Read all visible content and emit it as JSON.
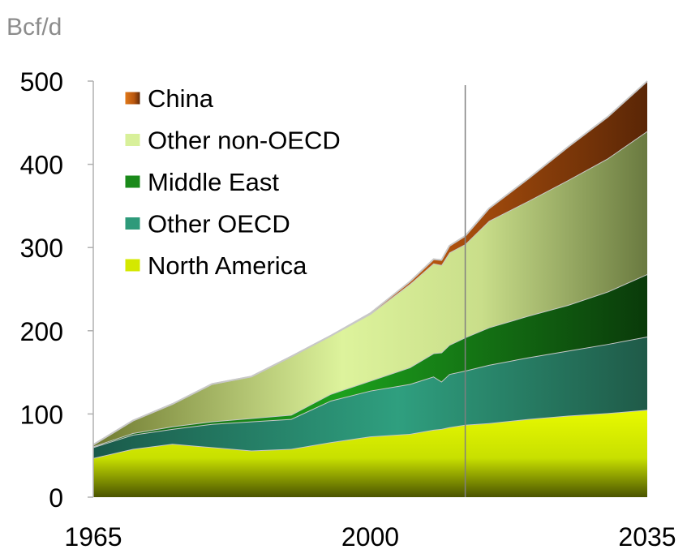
{
  "chart_data": {
    "type": "area",
    "stacked": true,
    "unit_label": "Bcf/d",
    "title": "",
    "xlabel": "",
    "ylabel": "Bcf/d",
    "xlim": [
      1965,
      2035
    ],
    "ylim": [
      0,
      500
    ],
    "x_ticks": [
      "1965",
      "2000",
      "2035"
    ],
    "y_ticks": [
      "0",
      "100",
      "200",
      "300",
      "400",
      "500"
    ],
    "grid": false,
    "legend_position": "top-left",
    "projection_start_year": 2012,
    "x": [
      1965,
      1970,
      1975,
      1980,
      1985,
      1990,
      1995,
      2000,
      2005,
      2008,
      2009,
      2010,
      2012,
      2015,
      2020,
      2025,
      2030,
      2035
    ],
    "series": [
      {
        "name": "North America",
        "color": "#d4e800",
        "values": [
          47,
          58,
          64,
          60,
          56,
          58,
          66,
          73,
          76,
          81,
          82,
          84,
          87,
          89,
          94,
          98,
          101,
          105
        ]
      },
      {
        "name": "Other OECD",
        "color": "#2e9a7a",
        "values": [
          13,
          17,
          18,
          28,
          35,
          36,
          50,
          55,
          60,
          64,
          57,
          64,
          65,
          70,
          74,
          78,
          83,
          88
        ]
      },
      {
        "name": "Middle East",
        "color": "#1a8a1a",
        "values": [
          1,
          2,
          3,
          3,
          4,
          5,
          8,
          12,
          20,
          28,
          35,
          35,
          40,
          45,
          50,
          55,
          63,
          75
        ]
      },
      {
        "name": "Other non-OECD",
        "color": "#d8f09a",
        "values": [
          2,
          15,
          27,
          45,
          50,
          70,
          70,
          80,
          100,
          108,
          105,
          111,
          112,
          128,
          138,
          150,
          160,
          172
        ]
      },
      {
        "name": "China",
        "color": "#c86010",
        "values": [
          0,
          0,
          0,
          0,
          0,
          0,
          0,
          1,
          3,
          5,
          6,
          8,
          10,
          15,
          27,
          40,
          50,
          60
        ]
      }
    ],
    "totals": [
      63,
      92,
      112,
      136,
      145,
      169,
      194,
      221,
      259,
      286,
      285,
      302,
      314,
      347,
      383,
      421,
      457,
      500
    ]
  }
}
